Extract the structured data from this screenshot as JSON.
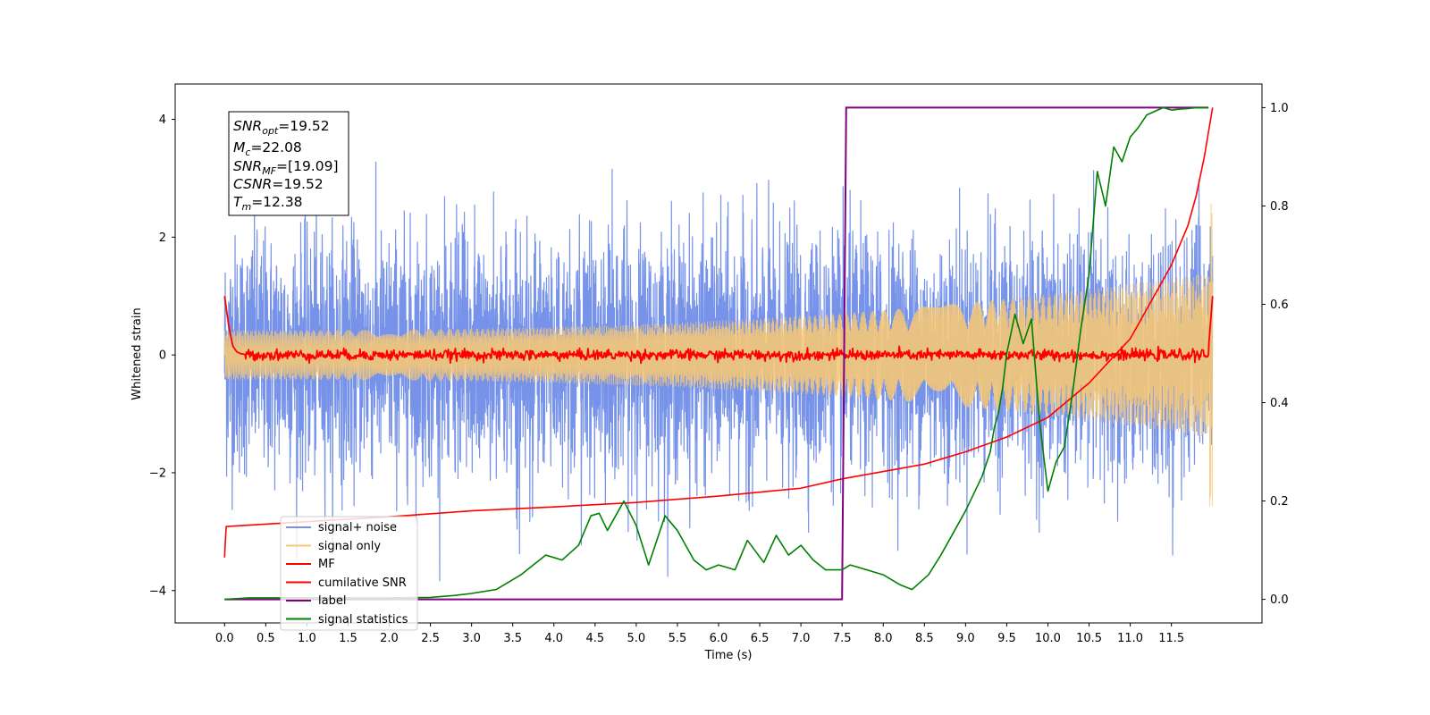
{
  "chart_data": {
    "type": "line",
    "title": "",
    "xlabel": "Time (s)",
    "ylabel": "Whitened strain",
    "y2label": "",
    "xlim": [
      -0.6,
      12.6
    ],
    "ylim": [
      -4.55,
      4.6
    ],
    "y2lim": [
      -0.048,
      1.048
    ],
    "x_ticks": [
      0.0,
      0.5,
      1.0,
      1.5,
      2.0,
      2.5,
      3.0,
      3.5,
      4.0,
      4.5,
      5.0,
      5.5,
      6.0,
      6.5,
      7.0,
      7.5,
      8.0,
      8.5,
      9.0,
      9.5,
      10.0,
      10.5,
      11.0,
      11.5
    ],
    "x_tick_labels": [
      "0.0",
      "0.5",
      "1.0",
      "1.5",
      "2.0",
      "2.5",
      "3.0",
      "3.5",
      "4.0",
      "4.5",
      "5.0",
      "5.5",
      "6.0",
      "6.5",
      "7.0",
      "7.5",
      "8.0",
      "8.5",
      "9.0",
      "9.5",
      "10.0",
      "10.5",
      "11.0",
      "11.5"
    ],
    "y_ticks": [
      -4,
      -2,
      0,
      2,
      4
    ],
    "y_tick_labels": [
      "−4",
      "−2",
      "0",
      "2",
      "4"
    ],
    "y2_ticks": [
      0.0,
      0.2,
      0.4,
      0.6,
      0.8,
      1.0
    ],
    "y2_tick_labels": [
      "0.0",
      "0.2",
      "0.4",
      "0.6",
      "0.8",
      "1.0"
    ],
    "grid": false,
    "legend_position": "lower-left",
    "annotation": {
      "lines": [
        {
          "name": "SNR",
          "sub": "opt",
          "value": "=19.52"
        },
        {
          "name": "M",
          "sub": "c",
          "value": "=22.08"
        },
        {
          "name": "SNR",
          "sub": "MF",
          "value": "=[19.09]"
        },
        {
          "name": "CSNR",
          "sub": "",
          "value": "=19.52"
        },
        {
          "name": "T",
          "sub": "m",
          "value": "=12.38"
        }
      ]
    },
    "series": [
      {
        "name": "signal+ noise",
        "color": "#4169e1",
        "alpha": 0.72,
        "axis": "left",
        "kind": "noise",
        "t_start": 0.0,
        "t_end": 12.0,
        "amplitude_sigma": 1.0,
        "max_value": 3.3,
        "min_value": -4.0
      },
      {
        "name": "signal only",
        "color": "#f5c878",
        "alpha": 0.9,
        "axis": "left",
        "kind": "chirp",
        "t_start": 0.0,
        "t_end": 12.0,
        "envelope_start": 0.42,
        "envelope_end": 1.4,
        "final_peak": 2.7
      },
      {
        "name": "MF",
        "color": "#ff0000",
        "axis": "left",
        "kind": "mf",
        "x": [
          0.0,
          0.05,
          0.1,
          0.15,
          0.2,
          0.3,
          12.0
        ],
        "y": [
          1.0,
          0.5,
          0.15,
          0.05,
          0.02,
          0.0,
          0.0
        ],
        "x_end_rise": [
          11.95,
          12.0
        ],
        "y_end_rise": [
          0.1,
          1.0
        ],
        "jitter": 0.045
      },
      {
        "name": "cumilative SNR",
        "color": "#ff0000",
        "axis": "right",
        "x": [
          0.0,
          0.01,
          0.02,
          1.0,
          2.0,
          3.0,
          4.0,
          5.0,
          6.0,
          7.0,
          7.5,
          8.0,
          8.5,
          9.0,
          9.5,
          10.0,
          10.5,
          11.0,
          11.5,
          11.7,
          11.8,
          11.9,
          11.95,
          12.0
        ],
        "y": [
          0.085,
          0.12,
          0.148,
          0.158,
          0.168,
          0.18,
          0.188,
          0.197,
          0.21,
          0.226,
          0.245,
          0.26,
          0.275,
          0.3,
          0.33,
          0.37,
          0.44,
          0.53,
          0.68,
          0.76,
          0.82,
          0.9,
          0.95,
          1.0
        ]
      },
      {
        "name": "label",
        "color": "#800080",
        "axis": "right",
        "x": [
          0.0,
          7.5,
          7.55,
          11.95
        ],
        "y": [
          0.0,
          0.0,
          1.0,
          1.0
        ]
      },
      {
        "name": "signal statistics",
        "color": "#008000",
        "axis": "right",
        "x": [
          0.0,
          0.3,
          1.0,
          2.0,
          2.5,
          2.8,
          3.0,
          3.3,
          3.6,
          3.9,
          4.1,
          4.3,
          4.45,
          4.55,
          4.65,
          4.85,
          5.0,
          5.15,
          5.35,
          5.5,
          5.7,
          5.85,
          6.0,
          6.2,
          6.35,
          6.55,
          6.7,
          6.85,
          7.0,
          7.15,
          7.3,
          7.5,
          7.6,
          8.0,
          8.2,
          8.35,
          8.55,
          8.7,
          9.0,
          9.2,
          9.3,
          9.35,
          9.4,
          9.45,
          9.5,
          9.6,
          9.7,
          9.8,
          9.9,
          10.0,
          10.1,
          10.2,
          10.3,
          10.4,
          10.5,
          10.6,
          10.7,
          10.8,
          10.9,
          11.0,
          11.1,
          11.2,
          11.4,
          11.5,
          11.6,
          11.7,
          11.8,
          11.95
        ],
        "y": [
          0.0,
          0.003,
          0.003,
          0.003,
          0.004,
          0.008,
          0.012,
          0.02,
          0.05,
          0.09,
          0.08,
          0.11,
          0.17,
          0.175,
          0.14,
          0.2,
          0.15,
          0.07,
          0.17,
          0.14,
          0.08,
          0.06,
          0.07,
          0.06,
          0.12,
          0.075,
          0.13,
          0.09,
          0.11,
          0.08,
          0.06,
          0.06,
          0.07,
          0.05,
          0.03,
          0.02,
          0.05,
          0.09,
          0.18,
          0.25,
          0.3,
          0.35,
          0.38,
          0.43,
          0.5,
          0.58,
          0.52,
          0.57,
          0.36,
          0.22,
          0.28,
          0.31,
          0.42,
          0.55,
          0.66,
          0.87,
          0.8,
          0.92,
          0.89,
          0.94,
          0.96,
          0.985,
          1.0,
          0.995,
          0.997,
          0.998,
          1.0,
          1.0
        ]
      }
    ]
  }
}
